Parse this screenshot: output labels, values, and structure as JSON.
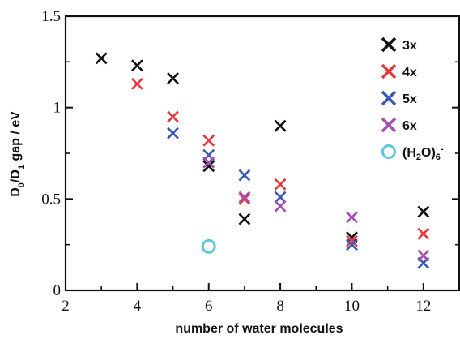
{
  "chart_data": {
    "type": "scatter",
    "xlabel": "number of water molecules",
    "ylabel": "D0/D1 gap / eV",
    "ylabel_parts": {
      "main1": "D",
      "sub1": "0",
      "slash": "/D",
      "sub2": "1",
      "rest": " gap / eV"
    },
    "xlim": [
      2,
      13
    ],
    "ylim": [
      0,
      1.5
    ],
    "x_ticks": [
      2,
      4,
      6,
      8,
      10,
      12
    ],
    "y_ticks": [
      0,
      0.5,
      1,
      1.5
    ],
    "x_tick_labels": [
      "2",
      "4",
      "6",
      "8",
      "10",
      "12"
    ],
    "y_tick_labels": [
      "0",
      "0.5",
      "1",
      "1.5"
    ],
    "grid": false,
    "legend_position": "top-right",
    "series": [
      {
        "name": "3x",
        "marker": "x",
        "color": "#111111",
        "x": [
          3,
          4,
          5,
          6,
          7,
          8,
          10,
          12
        ],
        "y": [
          1.27,
          1.23,
          1.16,
          0.68,
          0.39,
          0.9,
          0.29,
          0.43
        ]
      },
      {
        "name": "4x",
        "marker": "x",
        "color": "#e8393a",
        "x": [
          4,
          5,
          6,
          7,
          8,
          10,
          12
        ],
        "y": [
          1.13,
          0.95,
          0.82,
          0.5,
          0.58,
          0.27,
          0.31
        ]
      },
      {
        "name": "5x",
        "marker": "x",
        "color": "#3a57b5",
        "x": [
          5,
          6,
          7,
          8,
          10,
          12
        ],
        "y": [
          0.86,
          0.74,
          0.63,
          0.51,
          0.25,
          0.15
        ]
      },
      {
        "name": "6x",
        "marker": "x",
        "color": "#a44fb0",
        "x": [
          6,
          7,
          8,
          10,
          12
        ],
        "y": [
          0.7,
          0.51,
          0.46,
          0.4,
          0.19
        ]
      },
      {
        "name": "(H2O)6-",
        "name_parts": {
          "a": "(H",
          "sub": "2",
          "b": "O)",
          "sub2": "6",
          "sup": "-"
        },
        "marker": "circle",
        "color": "#5ec6d8",
        "x": [
          6
        ],
        "y": [
          0.24
        ]
      }
    ]
  }
}
